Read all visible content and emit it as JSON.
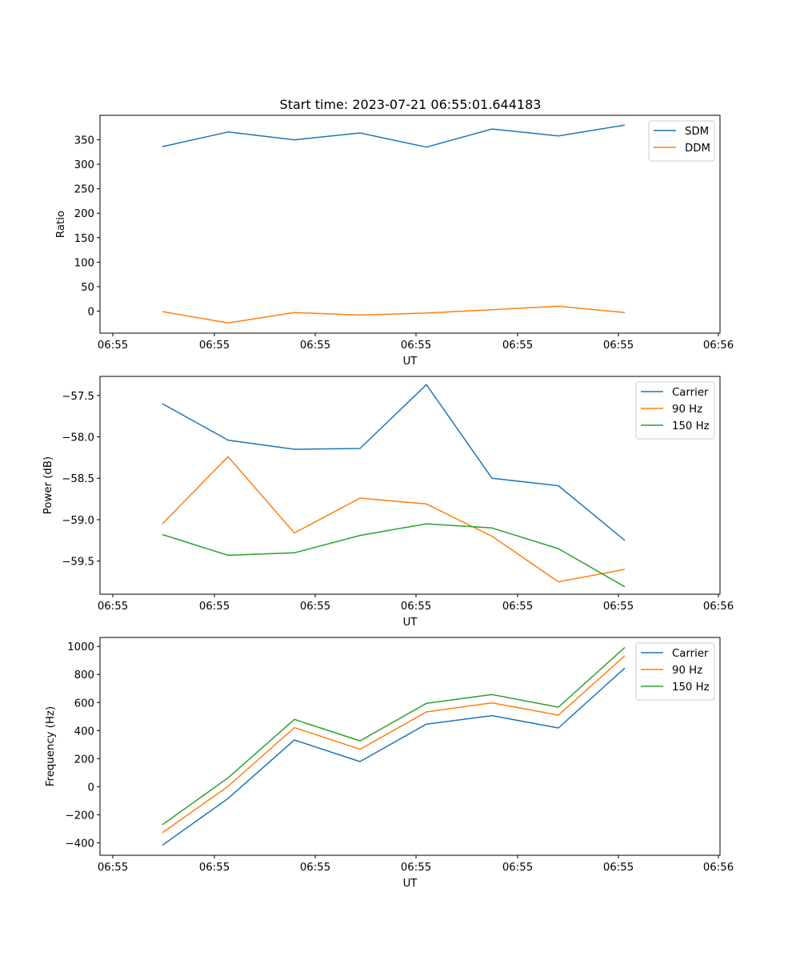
{
  "figure": {
    "title": "Start time: 2023-07-21 06:55:01.644183"
  },
  "chart_data": [
    {
      "type": "line",
      "title": "Start time: 2023-07-21 06:55:01.644183",
      "xlabel": "UT",
      "ylabel": "Ratio",
      "x_tick_labels": [
        "06:55",
        "06:55",
        "06:55",
        "06:55",
        "06:55",
        "06:55",
        "06:56"
      ],
      "x_index": [
        1,
        2,
        3,
        4,
        5,
        6,
        7,
        8
      ],
      "xlim": [
        -0.2,
        9.2
      ],
      "x_ticks": [
        -0.2,
        1.3,
        2.8,
        4.3,
        5.8,
        7.3,
        9.0
      ],
      "ylim": [
        -45,
        400
      ],
      "y_ticks": [
        0,
        50,
        100,
        150,
        200,
        250,
        300,
        350
      ],
      "legend_position": "top-right",
      "series": [
        {
          "name": "SDM",
          "color": "#1f77b4",
          "values": [
            336,
            366,
            350,
            364,
            335,
            372,
            358,
            380
          ]
        },
        {
          "name": "DDM",
          "color": "#ff7f0e",
          "values": [
            -1,
            -24,
            -3,
            -8,
            -4,
            3,
            10,
            -3
          ]
        }
      ]
    },
    {
      "type": "line",
      "title": "",
      "xlabel": "UT",
      "ylabel": "Power (dB)",
      "x_tick_labels": [
        "06:55",
        "06:55",
        "06:55",
        "06:55",
        "06:55",
        "06:55",
        "06:56"
      ],
      "x_index": [
        1,
        2,
        3,
        4,
        5,
        6,
        7,
        8
      ],
      "ylim": [
        -59.9,
        -57.27
      ],
      "y_ticks": [
        -59.5,
        -59.0,
        -58.5,
        -58.0,
        -57.5
      ],
      "y_tick_labels": [
        "−59.5",
        "−59.0",
        "−58.5",
        "−58.0",
        "−57.5"
      ],
      "legend_position": "top-right",
      "series": [
        {
          "name": "Carrier",
          "color": "#1f77b4",
          "values": [
            -57.6,
            -58.04,
            -58.15,
            -58.14,
            -57.37,
            -58.5,
            -58.59,
            -59.25
          ]
        },
        {
          "name": "90 Hz",
          "color": "#ff7f0e",
          "values": [
            -59.05,
            -58.24,
            -59.16,
            -58.74,
            -58.81,
            -59.2,
            -59.75,
            -59.6
          ]
        },
        {
          "name": "150 Hz",
          "color": "#2ca02c",
          "values": [
            -59.18,
            -59.43,
            -59.4,
            -59.19,
            -59.05,
            -59.1,
            -59.35,
            -59.81
          ]
        }
      ]
    },
    {
      "type": "line",
      "title": "",
      "xlabel": "UT",
      "ylabel": "Frequency (Hz)",
      "x_tick_labels": [
        "06:55",
        "06:55",
        "06:55",
        "06:55",
        "06:55",
        "06:55",
        "06:56"
      ],
      "x_index": [
        1,
        2,
        3,
        4,
        5,
        6,
        7,
        8
      ],
      "ylim": [
        -489,
        1064
      ],
      "y_ticks": [
        -400,
        -200,
        0,
        200,
        400,
        600,
        800,
        1000
      ],
      "y_tick_labels": [
        "−400",
        "−200",
        "0",
        "200",
        "400",
        "600",
        "800",
        "1000"
      ],
      "legend_position": "top-right",
      "series": [
        {
          "name": "Carrier",
          "color": "#1f77b4",
          "values": [
            -417,
            -84,
            333,
            179,
            446,
            507,
            419,
            846
          ]
        },
        {
          "name": "90 Hz",
          "color": "#ff7f0e",
          "values": [
            -328,
            2,
            421,
            267,
            533,
            598,
            510,
            933
          ]
        },
        {
          "name": "150 Hz",
          "color": "#2ca02c",
          "values": [
            -271,
            63,
            480,
            327,
            594,
            657,
            567,
            993
          ]
        }
      ]
    }
  ]
}
